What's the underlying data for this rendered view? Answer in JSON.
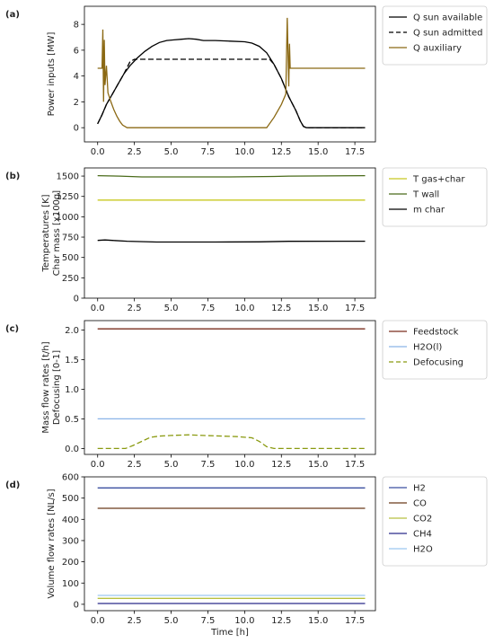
{
  "figure": {
    "x_label": "Time [h]"
  },
  "chart_data": [
    {
      "panel_label": "(a)",
      "type": "line",
      "ylabel_lines": [
        "Power inputs [MW]"
      ],
      "xlim": [
        -0.9,
        18.9
      ],
      "ylim": [
        -1.1,
        9.4
      ],
      "x_ticks": [
        0,
        2.5,
        5,
        7.5,
        10,
        12.5,
        15,
        17.5
      ],
      "x_tick_labels": [
        "0.0",
        "2.5",
        "5.0",
        "7.5",
        "10.0",
        "12.5",
        "15.0",
        "17.5"
      ],
      "y_ticks": [
        0,
        2,
        4,
        6,
        8
      ],
      "y_tick_labels": [
        "0",
        "2",
        "4",
        "6",
        "8"
      ],
      "series": [
        {
          "name": "Q sun available",
          "color": "#000000",
          "dash": "solid",
          "points": [
            [
              0,
              0.3
            ],
            [
              0.3,
              1.0
            ],
            [
              0.6,
              1.8
            ],
            [
              1.0,
              2.6
            ],
            [
              1.4,
              3.4
            ],
            [
              1.8,
              4.2
            ],
            [
              2.2,
              4.8
            ],
            [
              2.7,
              5.4
            ],
            [
              3.2,
              5.9
            ],
            [
              3.7,
              6.3
            ],
            [
              4.2,
              6.6
            ],
            [
              4.7,
              6.75
            ],
            [
              5.2,
              6.8
            ],
            [
              5.7,
              6.85
            ],
            [
              6.2,
              6.9
            ],
            [
              6.7,
              6.85
            ],
            [
              7.2,
              6.75
            ],
            [
              8.0,
              6.75
            ],
            [
              9.0,
              6.7
            ],
            [
              10.0,
              6.65
            ],
            [
              10.5,
              6.55
            ],
            [
              11.0,
              6.3
            ],
            [
              11.5,
              5.8
            ],
            [
              12.0,
              4.9
            ],
            [
              12.5,
              3.8
            ],
            [
              13.0,
              2.4
            ],
            [
              13.5,
              1.3
            ],
            [
              13.8,
              0.5
            ],
            [
              14.0,
              0.1
            ],
            [
              14.2,
              0
            ],
            [
              18.2,
              0
            ]
          ]
        },
        {
          "name": "Q sun admitted",
          "color": "#000000",
          "dash": "dashed",
          "points": [
            [
              0,
              0.3
            ],
            [
              0.3,
              1.0
            ],
            [
              0.6,
              1.8
            ],
            [
              1.0,
              2.6
            ],
            [
              1.4,
              3.4
            ],
            [
              1.8,
              4.2
            ],
            [
              2.2,
              5.1
            ],
            [
              2.5,
              5.3
            ],
            [
              11.7,
              5.3
            ],
            [
              12.0,
              4.9
            ],
            [
              12.5,
              3.8
            ],
            [
              13.0,
              2.4
            ],
            [
              13.5,
              1.3
            ],
            [
              13.8,
              0.5
            ],
            [
              14.0,
              0.1
            ],
            [
              14.2,
              0
            ],
            [
              18.2,
              0
            ]
          ]
        },
        {
          "name": "Q auxiliary",
          "color": "#8b6914",
          "dash": "solid",
          "points": [
            [
              0,
              4.6
            ],
            [
              0.3,
              4.6
            ],
            [
              0.35,
              7.6
            ],
            [
              0.4,
              2.0
            ],
            [
              0.45,
              6.8
            ],
            [
              0.5,
              3.3
            ],
            [
              0.6,
              4.8
            ],
            [
              0.7,
              2.7
            ],
            [
              0.9,
              2.0
            ],
            [
              1.1,
              1.4
            ],
            [
              1.3,
              0.9
            ],
            [
              1.5,
              0.5
            ],
            [
              1.7,
              0.2
            ],
            [
              2.0,
              0
            ],
            [
              11.5,
              0
            ],
            [
              12.0,
              0.8
            ],
            [
              12.5,
              1.8
            ],
            [
              12.8,
              2.6
            ],
            [
              12.9,
              8.5
            ],
            [
              13.0,
              3.2
            ],
            [
              13.05,
              6.5
            ],
            [
              13.1,
              4.6
            ],
            [
              18.2,
              4.6
            ]
          ]
        }
      ]
    },
    {
      "panel_label": "(b)",
      "type": "line",
      "ylabel_lines": [
        "Temperatures [K]",
        "Char mass [x100g]"
      ],
      "xlim": [
        -0.9,
        18.9
      ],
      "ylim": [
        0,
        1600
      ],
      "x_ticks": [
        0,
        2.5,
        5,
        7.5,
        10,
        12.5,
        15,
        17.5
      ],
      "x_tick_labels": [
        "0.0",
        "2.5",
        "5.0",
        "7.5",
        "10.0",
        "12.5",
        "15.0",
        "17.5"
      ],
      "y_ticks": [
        0,
        250,
        500,
        750,
        1000,
        1250,
        1500
      ],
      "y_tick_labels": [
        "0",
        "250",
        "500",
        "750",
        "1000",
        "1250",
        "1500"
      ],
      "series": [
        {
          "name": "T gas+char",
          "color": "#c8c820",
          "dash": "solid",
          "points": [
            [
              0,
              1205
            ],
            [
              18.2,
              1205
            ]
          ]
        },
        {
          "name": "T wall",
          "color": "#4a6b1a",
          "dash": "solid",
          "points": [
            [
              0,
              1505
            ],
            [
              1.5,
              1500
            ],
            [
              3.0,
              1490
            ],
            [
              6.0,
              1490
            ],
            [
              9.0,
              1490
            ],
            [
              12.0,
              1495
            ],
            [
              13.0,
              1500
            ],
            [
              18.2,
              1505
            ]
          ]
        },
        {
          "name": "m char",
          "color": "#000000",
          "dash": "solid",
          "points": [
            [
              0,
              710
            ],
            [
              0.5,
              715
            ],
            [
              1.0,
              710
            ],
            [
              2.0,
              700
            ],
            [
              4.0,
              690
            ],
            [
              8.0,
              690
            ],
            [
              11.0,
              692
            ],
            [
              13.0,
              698
            ],
            [
              18.2,
              700
            ]
          ]
        }
      ]
    },
    {
      "panel_label": "(c)",
      "type": "line",
      "ylabel_lines": [
        "Mass flow rates [t/h]",
        "Defocusing [0-1]"
      ],
      "xlim": [
        -0.9,
        18.9
      ],
      "ylim": [
        -0.1,
        2.16
      ],
      "x_ticks": [
        0,
        2.5,
        5,
        7.5,
        10,
        12.5,
        15,
        17.5
      ],
      "x_tick_labels": [
        "0.0",
        "2.5",
        "5.0",
        "7.5",
        "10.0",
        "12.5",
        "15.0",
        "17.5"
      ],
      "y_ticks": [
        0,
        0.5,
        1.0,
        1.5,
        2.0
      ],
      "y_tick_labels": [
        "0.0",
        "0.5",
        "1.0",
        "1.5",
        "2.0"
      ],
      "series": [
        {
          "name": "Feedstock",
          "color": "#7a2e1e",
          "dash": "solid",
          "points": [
            [
              0,
              2.02
            ],
            [
              18.2,
              2.02
            ]
          ]
        },
        {
          "name": "H2O(l)",
          "color": "#8ab4e8",
          "dash": "solid",
          "points": [
            [
              0,
              0.5
            ],
            [
              18.2,
              0.5
            ]
          ]
        },
        {
          "name": "Defocusing",
          "color": "#8a9a10",
          "dash": "dashed",
          "points": [
            [
              0,
              0
            ],
            [
              1.9,
              0
            ],
            [
              2.4,
              0.05
            ],
            [
              3.0,
              0.12
            ],
            [
              3.6,
              0.19
            ],
            [
              4.2,
              0.21
            ],
            [
              5.0,
              0.22
            ],
            [
              6.2,
              0.23
            ],
            [
              7.2,
              0.22
            ],
            [
              8.5,
              0.21
            ],
            [
              9.5,
              0.2
            ],
            [
              10.5,
              0.18
            ],
            [
              11.0,
              0.12
            ],
            [
              11.5,
              0.03
            ],
            [
              12.0,
              0
            ],
            [
              18.2,
              0
            ]
          ]
        }
      ]
    },
    {
      "panel_label": "(d)",
      "type": "line",
      "ylabel_lines": [
        "Volume flow rates [NL/s]"
      ],
      "xlim": [
        -0.9,
        18.9
      ],
      "ylim": [
        -30,
        600
      ],
      "x_ticks": [
        0,
        2.5,
        5,
        7.5,
        10,
        12.5,
        15,
        17.5
      ],
      "x_tick_labels": [
        "0.0",
        "2.5",
        "5.0",
        "7.5",
        "10.0",
        "12.5",
        "15.0",
        "17.5"
      ],
      "y_ticks": [
        0,
        100,
        200,
        300,
        400,
        500,
        600
      ],
      "y_tick_labels": [
        "0",
        "100",
        "200",
        "300",
        "400",
        "500",
        "600"
      ],
      "series": [
        {
          "name": "H2",
          "color": "#3a4fa0",
          "dash": "solid",
          "points": [
            [
              0,
              548
            ],
            [
              18.2,
              548
            ]
          ]
        },
        {
          "name": "CO",
          "color": "#6b3a1a",
          "dash": "solid",
          "points": [
            [
              0,
              452
            ],
            [
              18.2,
              452
            ]
          ]
        },
        {
          "name": "CO2",
          "color": "#b8c040",
          "dash": "solid",
          "points": [
            [
              0,
              28
            ],
            [
              18.2,
              28
            ]
          ]
        },
        {
          "name": "CH4",
          "color": "#2a2a8a",
          "dash": "solid",
          "points": [
            [
              0,
              4
            ],
            [
              18.2,
              4
            ]
          ]
        },
        {
          "name": "H2O",
          "color": "#9cc8f0",
          "dash": "solid",
          "points": [
            [
              0,
              42
            ],
            [
              18.2,
              42
            ]
          ]
        }
      ]
    }
  ]
}
